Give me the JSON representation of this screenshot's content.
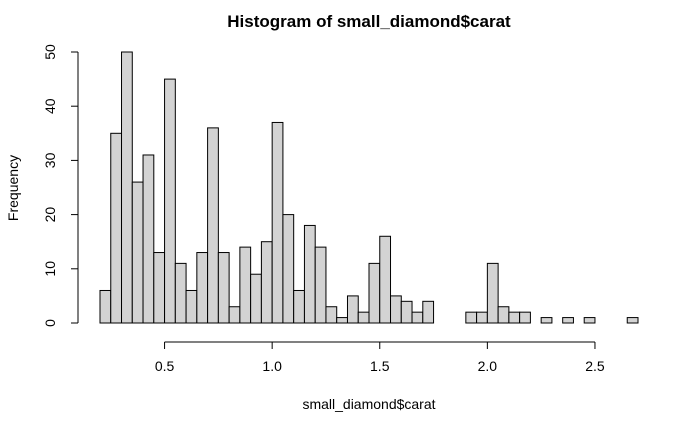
{
  "chart_data": {
    "type": "bar",
    "title": "Histogram of small_diamond$carat",
    "xlabel": "small_diamond$carat",
    "ylabel": "Frequency",
    "bin_width": 0.05,
    "bins_start": [
      0.2,
      0.25,
      0.3,
      0.35,
      0.4,
      0.45,
      0.5,
      0.55,
      0.6,
      0.65,
      0.7,
      0.75,
      0.8,
      0.85,
      0.9,
      0.95,
      1.0,
      1.05,
      1.1,
      1.15,
      1.2,
      1.25,
      1.3,
      1.35,
      1.4,
      1.45,
      1.5,
      1.55,
      1.6,
      1.65,
      1.7,
      1.75,
      1.8,
      1.85,
      1.9,
      1.95,
      2.0,
      2.05,
      2.1,
      2.15,
      2.2,
      2.25,
      2.3,
      2.35,
      2.4,
      2.45,
      2.5,
      2.55,
      2.6,
      2.65
    ],
    "values": [
      6,
      35,
      50,
      26,
      31,
      13,
      45,
      11,
      6,
      13,
      36,
      13,
      3,
      14,
      9,
      15,
      37,
      20,
      6,
      18,
      14,
      3,
      1,
      5,
      2,
      11,
      16,
      5,
      4,
      2,
      4,
      0,
      0,
      0,
      2,
      2,
      11,
      3,
      2,
      2,
      0,
      1,
      0,
      1,
      0,
      1,
      0,
      0,
      0,
      1
    ],
    "xlim": [
      0.2,
      2.7
    ],
    "ylim": [
      0,
      50
    ],
    "x_ticks": [
      0.5,
      1.0,
      1.5,
      2.0,
      2.5
    ],
    "x_tick_labels": [
      "0.5",
      "1.0",
      "1.5",
      "2.0",
      "2.5"
    ],
    "y_ticks": [
      0,
      10,
      20,
      30,
      40,
      50
    ],
    "y_tick_labels": [
      "0",
      "10",
      "20",
      "30",
      "40",
      "50"
    ],
    "bar_fill": "#d3d3d3",
    "bar_stroke": "#000000",
    "grid": false
  }
}
